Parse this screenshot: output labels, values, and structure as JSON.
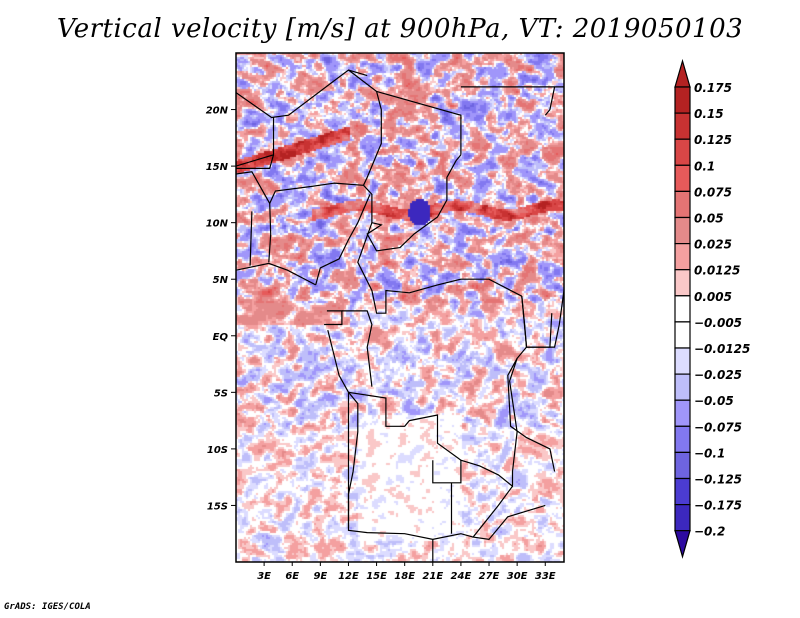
{
  "chart_data": {
    "type": "heatmap",
    "title": "Vertical velocity [m/s] at 900hPa, VT: 2019050103",
    "variable": "Vertical velocity",
    "units": "m/s",
    "level": "900hPa",
    "valid_time": "2019050103",
    "xlabel": "",
    "ylabel": "",
    "xlim": [
      0,
      35
    ],
    "ylim": [
      -20,
      25
    ],
    "x_ticks": [
      {
        "value": 3,
        "label": "3E"
      },
      {
        "value": 6,
        "label": "6E"
      },
      {
        "value": 9,
        "label": "9E"
      },
      {
        "value": 12,
        "label": "12E"
      },
      {
        "value": 15,
        "label": "15E"
      },
      {
        "value": 18,
        "label": "18E"
      },
      {
        "value": 21,
        "label": "21E"
      },
      {
        "value": 24,
        "label": "24E"
      },
      {
        "value": 27,
        "label": "27E"
      },
      {
        "value": 30,
        "label": "30E"
      },
      {
        "value": 33,
        "label": "33E"
      }
    ],
    "y_ticks": [
      {
        "value": 20,
        "label": "20N"
      },
      {
        "value": 15,
        "label": "15N"
      },
      {
        "value": 10,
        "label": "10N"
      },
      {
        "value": 5,
        "label": "5N"
      },
      {
        "value": 0,
        "label": "EQ"
      },
      {
        "value": -5,
        "label": "5S"
      },
      {
        "value": -10,
        "label": "10S"
      },
      {
        "value": -15,
        "label": "15S"
      }
    ],
    "colorbar": {
      "placement": "right",
      "extend": "both",
      "levels": [
        {
          "label": "0.175",
          "color": "#b42222"
        },
        {
          "label": "0.15",
          "color": "#c83232"
        },
        {
          "label": "0.125",
          "color": "#d84646"
        },
        {
          "label": "0.1",
          "color": "#e65a5a"
        },
        {
          "label": "0.075",
          "color": "#e47474"
        },
        {
          "label": "0.05",
          "color": "#e48a8a"
        },
        {
          "label": "0.025",
          "color": "#f4a0a0"
        },
        {
          "label": "0.0125",
          "color": "#fac8c8"
        },
        {
          "label": "0.005",
          "color": "#ffe6e6"
        },
        {
          "label": "-0.005",
          "color": "#ffffff"
        },
        {
          "label": "-0.0125",
          "color": "#dcdcff"
        },
        {
          "label": "-0.025",
          "color": "#bebefa"
        },
        {
          "label": "-0.05",
          "color": "#a096fa"
        },
        {
          "label": "-0.075",
          "color": "#8278f0"
        },
        {
          "label": "-0.1",
          "color": "#6e64e0"
        },
        {
          "label": "-0.125",
          "color": "#4b3cd2"
        },
        {
          "label": "-0.175",
          "color": "#3c28be"
        },
        {
          "label": "-0.2",
          "color": "#2d1eaa"
        }
      ],
      "top_arrow_color": "#b42222",
      "bottom_arrow_color": "#2d0aa0"
    },
    "features": [
      "Strong ascent band (red) near 15N across Sahel",
      "Ascent band near 11N from 10E to 35E",
      "Convective cluster near 11N 20E with strong descent cores",
      "Weak values (near zero) over Angola / southern Africa interior"
    ]
  },
  "footer": "GrADS: IGES/COLA"
}
